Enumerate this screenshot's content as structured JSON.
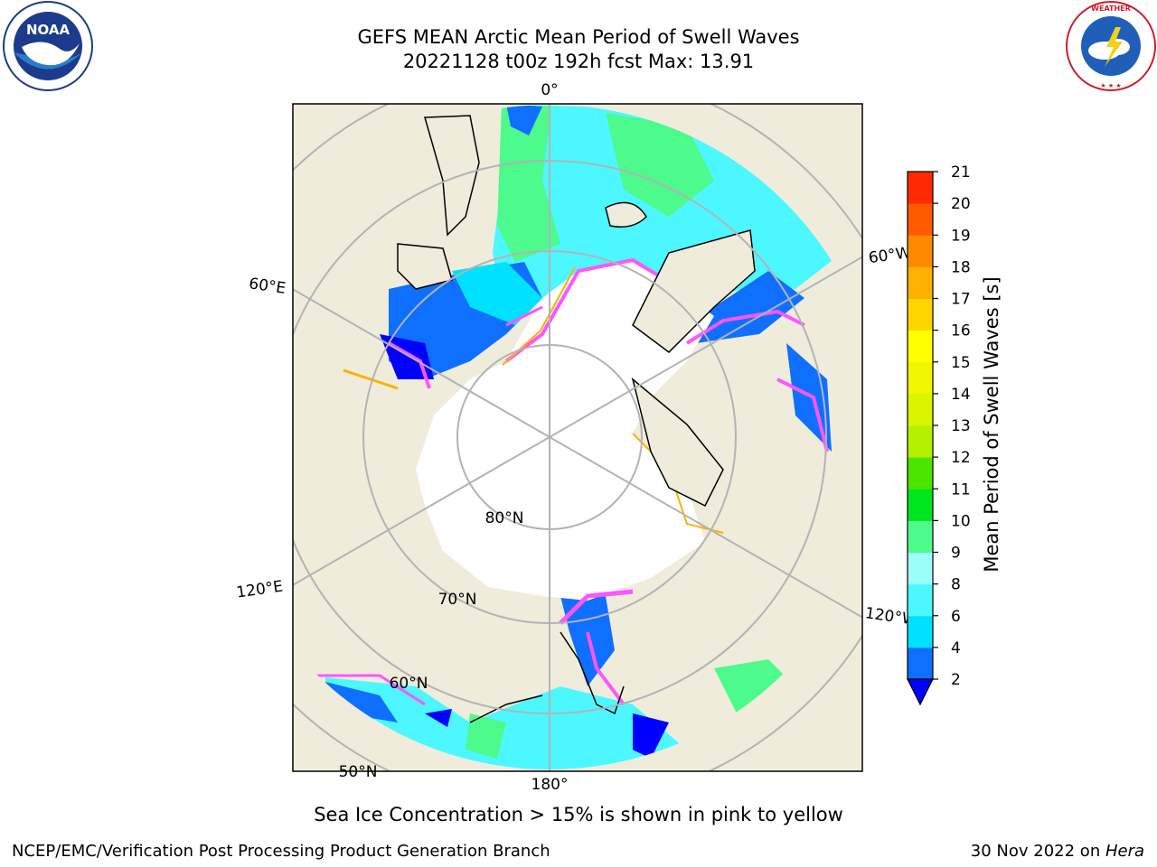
{
  "title": {
    "line1": "GEFS MEAN Arctic Mean Period of Swell Waves",
    "line2": "20221128 t00z 192h fcst   Max: 13.91"
  },
  "logos": {
    "noaa": {
      "text": "NOAA",
      "ring_text": "NATIONAL OCEANIC AND ATMOSPHERIC ADMINISTRATION · U.S. DEPARTMENT OF COMMERCE",
      "icon": "noaa-logo"
    },
    "nws": {
      "ring_text": "NATIONAL WEATHER SERVICE",
      "icon": "nws-logo"
    }
  },
  "map": {
    "projection": "north polar stereographic",
    "longitude_labels": [
      "0°",
      "60°E",
      "60°W",
      "120°E",
      "120°W",
      "180°"
    ],
    "latitude_labels": [
      "80°N",
      "70°N",
      "60°N",
      "50°N"
    ],
    "colors": {
      "land": "#efecdc",
      "ice": "#ffffff",
      "gridline": "#b3b3b3",
      "coast": "#000000"
    }
  },
  "colorbar": {
    "label": "Mean Period of Swell Waves [s]",
    "ticks": [
      "2",
      "4",
      "6",
      "8",
      "9",
      "10",
      "11",
      "12",
      "13",
      "14",
      "15",
      "16",
      "17",
      "18",
      "19",
      "20",
      "21"
    ],
    "colors": [
      "#0f6fff",
      "#00e1ff",
      "#4df7ff",
      "#9bfff7",
      "#4dfa8c",
      "#00e61e",
      "#4be600",
      "#b4f000",
      "#d9f500",
      "#f0f500",
      "#ffff00",
      "#ffd500",
      "#ffb000",
      "#ff8a00",
      "#ff5a00",
      "#ff2a00"
    ],
    "extend_color": "#0000ff"
  },
  "caption": "Sea Ice Concentration > 15% is shown in pink to yellow",
  "footer": {
    "left": "NCEP/EMC/Verification Post Processing Product Generation Branch",
    "right_date": "30 Nov 2022 on ",
    "right_machine": "Hera"
  }
}
